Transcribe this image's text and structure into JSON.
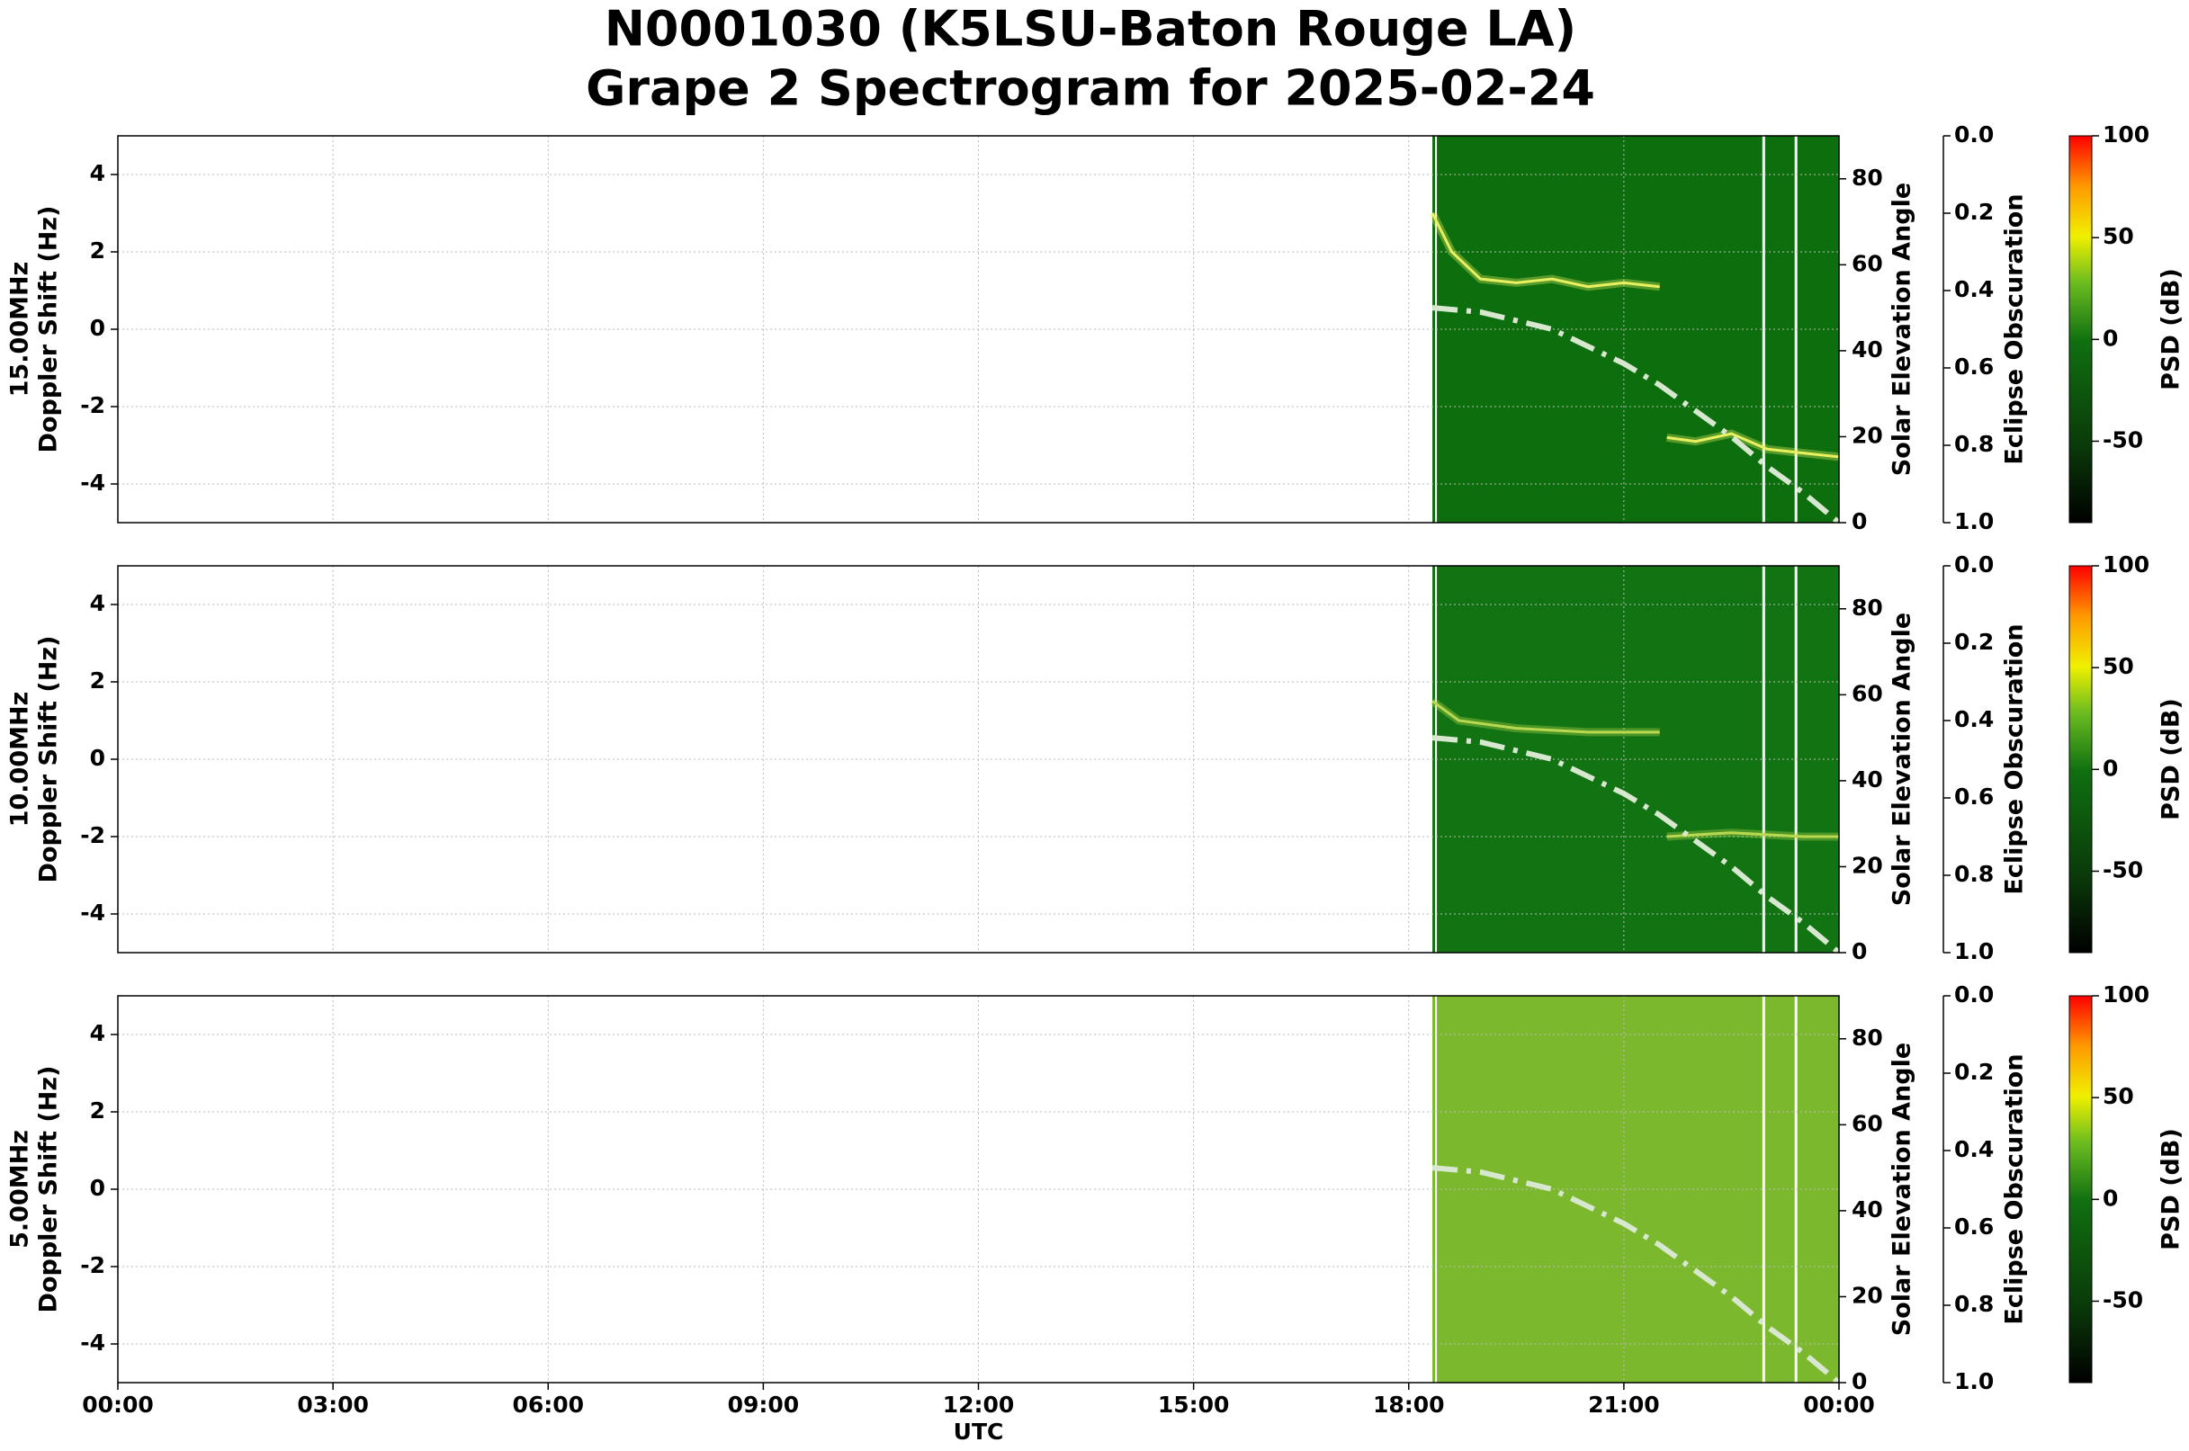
{
  "chart_data": {
    "type": "spectrogram",
    "title": [
      "N0001030 (K5LSU-Baton Rouge LA)",
      "Grape 2 Spectrogram for 2025-02-24"
    ],
    "xlabel": "UTC",
    "xlim": [
      0,
      24
    ],
    "xticks": [
      {
        "value": 0,
        "label": "00:00"
      },
      {
        "value": 3,
        "label": "03:00"
      },
      {
        "value": 6,
        "label": "06:00"
      },
      {
        "value": 9,
        "label": "09:00"
      },
      {
        "value": 12,
        "label": "12:00"
      },
      {
        "value": 15,
        "label": "15:00"
      },
      {
        "value": 18,
        "label": "18:00"
      },
      {
        "value": 21,
        "label": "21:00"
      },
      {
        "value": 24,
        "label": "00:00"
      }
    ],
    "grid": true,
    "panels": [
      {
        "ylabel": [
          "15.00MHz",
          "Doppler Shift (Hz)"
        ],
        "ylim": [
          -5,
          5
        ],
        "yticks": [
          -4,
          -2,
          0,
          2,
          4
        ],
        "y2label": "Solar Elevation Angle",
        "y2lim": [
          0,
          90
        ],
        "y2ticks": [
          0,
          20,
          40,
          60,
          80
        ],
        "y3label": "Eclipse Obscuration",
        "y3lim": [
          0,
          1
        ],
        "y3ticks": [
          {
            "value": 0,
            "label": "0.0"
          },
          {
            "value": 0.2,
            "label": "0.2"
          },
          {
            "value": 0.4,
            "label": "0.4"
          },
          {
            "value": 0.6,
            "label": "0.6"
          },
          {
            "value": 0.8,
            "label": "0.8"
          },
          {
            "value": 1,
            "label": "1.0"
          }
        ],
        "colorbar": {
          "label": "PSD (dB)",
          "lim": [
            -90,
            100
          ],
          "ticks": [
            -50,
            0,
            50,
            100
          ]
        },
        "coverage": [
          18.33,
          24
        ],
        "fill": "#0d6e0d",
        "gaps": [
          22.95,
          23.4
        ],
        "doppler": {
          "color": "#e8f060",
          "x": [
            18.33,
            18.6,
            19,
            19.5,
            20,
            20.5,
            21,
            21.5,
            21.55,
            21.6,
            22,
            22.5,
            23,
            23.5,
            24
          ],
          "values": [
            3,
            2,
            1.3,
            1.2,
            1.3,
            1.1,
            1.2,
            1.1,
            null,
            -2.8,
            -2.9,
            -2.7,
            -3.1,
            -3.2,
            -3.3
          ]
        },
        "solar_elevation": {
          "axis": "y2",
          "color": "#d8e8d0",
          "x": [
            18.33,
            19,
            19.5,
            20,
            20.5,
            21,
            21.5,
            22,
            22.5,
            23,
            23.5,
            24
          ],
          "values": [
            50,
            49,
            47,
            45,
            41,
            37,
            32,
            26,
            20,
            13,
            7,
            0
          ]
        }
      },
      {
        "ylabel": [
          "10.00MHz",
          "Doppler Shift (Hz)"
        ],
        "ylim": [
          -5,
          5
        ],
        "yticks": [
          -4,
          -2,
          0,
          2,
          4
        ],
        "y2label": "Solar Elevation Angle",
        "y2lim": [
          0,
          90
        ],
        "y2ticks": [
          0,
          20,
          40,
          60,
          80
        ],
        "y3label": "Eclipse Obscuration",
        "y3lim": [
          0,
          1
        ],
        "y3ticks": [
          {
            "value": 0,
            "label": "0.0"
          },
          {
            "value": 0.2,
            "label": "0.2"
          },
          {
            "value": 0.4,
            "label": "0.4"
          },
          {
            "value": 0.6,
            "label": "0.6"
          },
          {
            "value": 0.8,
            "label": "0.8"
          },
          {
            "value": 1,
            "label": "1.0"
          }
        ],
        "colorbar": {
          "label": "PSD (dB)",
          "lim": [
            -90,
            100
          ],
          "ticks": [
            -50,
            0,
            50,
            100
          ]
        },
        "coverage": [
          18.33,
          24
        ],
        "fill": "#127312",
        "gaps": [
          22.95,
          23.4
        ],
        "doppler": {
          "color": "#b8d850",
          "x": [
            18.33,
            18.7,
            19.5,
            20.5,
            21.5,
            21.55,
            21.6,
            22.5,
            23.5,
            24
          ],
          "values": [
            1.5,
            1,
            0.8,
            0.7,
            0.7,
            null,
            -2,
            -1.9,
            -2,
            -2
          ]
        },
        "solar_elevation": {
          "axis": "y2",
          "color": "#d8e8d0",
          "x": [
            18.33,
            19,
            19.5,
            20,
            20.5,
            21,
            21.5,
            22,
            22.5,
            23,
            23.5,
            24
          ],
          "values": [
            50,
            49,
            47,
            45,
            41,
            37,
            32,
            26,
            20,
            13,
            7,
            0
          ]
        }
      },
      {
        "ylabel": [
          "5.00MHz",
          "Doppler Shift (Hz)"
        ],
        "ylim": [
          -5,
          5
        ],
        "yticks": [
          -4,
          -2,
          0,
          2,
          4
        ],
        "y2label": "Solar Elevation Angle",
        "y2lim": [
          0,
          90
        ],
        "y2ticks": [
          0,
          20,
          40,
          60,
          80
        ],
        "y3label": "Eclipse Obscuration",
        "y3lim": [
          0,
          1
        ],
        "y3ticks": [
          {
            "value": 0,
            "label": "0.0"
          },
          {
            "value": 0.2,
            "label": "0.2"
          },
          {
            "value": 0.4,
            "label": "0.4"
          },
          {
            "value": 0.6,
            "label": "0.6"
          },
          {
            "value": 0.8,
            "label": "0.8"
          },
          {
            "value": 1,
            "label": "1.0"
          }
        ],
        "colorbar": {
          "label": "PSD (dB)",
          "lim": [
            -90,
            100
          ],
          "ticks": [
            -50,
            0,
            50,
            100
          ]
        },
        "coverage": [
          18.33,
          24
        ],
        "fill": "#7cb82e",
        "gaps": [
          22.95,
          23.4
        ],
        "solar_elevation": {
          "axis": "y2",
          "color": "#d8e8d0",
          "x": [
            18.33,
            19,
            19.5,
            20,
            20.5,
            21,
            21.5,
            22,
            22.5,
            23,
            23.5,
            24
          ],
          "values": [
            50,
            49,
            47,
            45,
            41,
            37,
            32,
            26,
            20,
            13,
            7,
            0
          ]
        }
      }
    ]
  }
}
